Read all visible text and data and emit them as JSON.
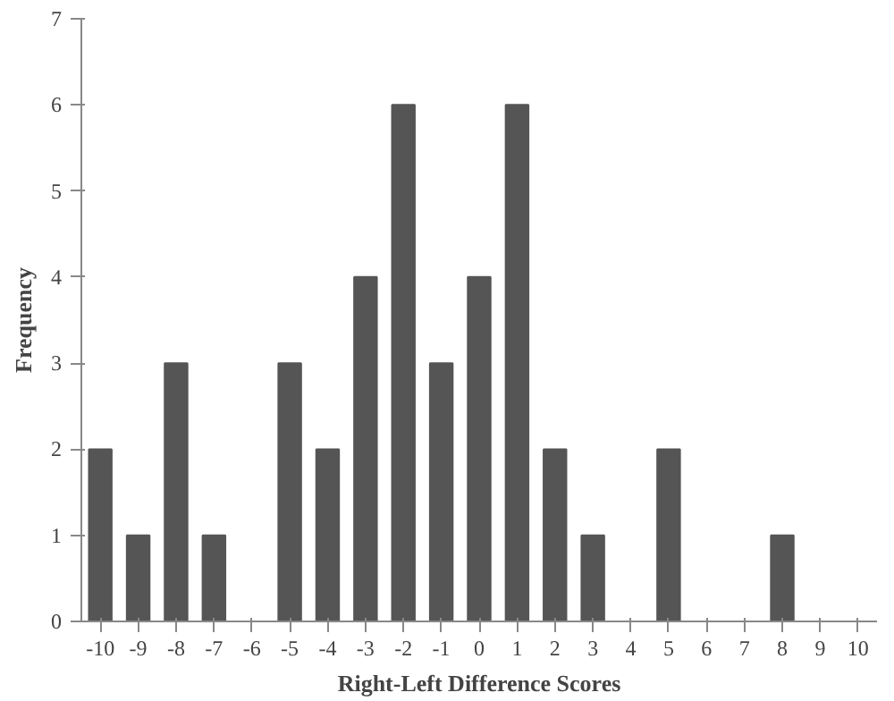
{
  "chart_data": {
    "type": "bar",
    "xlabel": "Right-Left Difference Scores",
    "ylabel": "Frequency",
    "categories": [
      "-10",
      "-9",
      "-8",
      "-7",
      "-6",
      "-5",
      "-4",
      "-3",
      "-2",
      "-1",
      "0",
      "1",
      "2",
      "3",
      "4",
      "5",
      "6",
      "7",
      "8",
      "9",
      "10"
    ],
    "values": [
      2,
      1,
      3,
      1,
      0,
      3,
      2,
      4,
      6,
      3,
      4,
      6,
      2,
      1,
      0,
      2,
      0,
      0,
      1,
      0,
      0
    ],
    "color": "#555555",
    "ylim": [
      0,
      7
    ],
    "yticks": [
      0,
      1,
      2,
      3,
      4,
      5,
      6,
      7
    ],
    "grid": false
  }
}
